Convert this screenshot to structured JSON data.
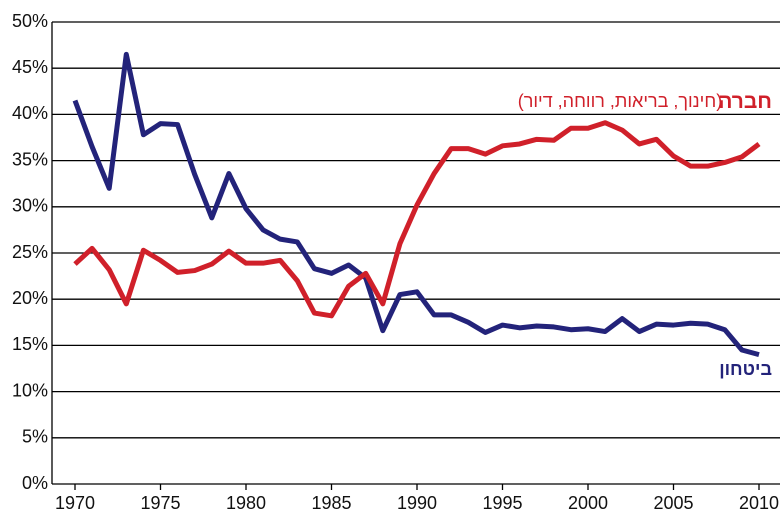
{
  "chart_data": {
    "type": "line",
    "x": [
      1970,
      1971,
      1972,
      1973,
      1974,
      1975,
      1976,
      1977,
      1978,
      1979,
      1980,
      1981,
      1982,
      1983,
      1984,
      1985,
      1986,
      1987,
      1988,
      1989,
      1990,
      1991,
      1992,
      1993,
      1994,
      1995,
      1996,
      1997,
      1998,
      1999,
      2000,
      2001,
      2002,
      2003,
      2004,
      2005,
      2006,
      2007,
      2008,
      2009,
      2010
    ],
    "series": [
      {
        "name": "ביטחון",
        "color": "#23237a",
        "values": [
          41.5,
          36.5,
          32,
          46.5,
          37.8,
          39,
          38.9,
          33.5,
          28.8,
          33.6,
          29.8,
          27.5,
          26.5,
          26.2,
          23.3,
          22.8,
          23.7,
          22.3,
          16.6,
          20.5,
          20.8,
          18.3,
          18.3,
          17.5,
          16.4,
          17.2,
          16.9,
          17.1,
          17,
          16.7,
          16.8,
          16.5,
          17.9,
          16.5,
          17.3,
          17.2,
          17.4,
          17.3,
          16.7,
          14.5,
          14.0
        ]
      },
      {
        "name": "חברה",
        "color": "#d0202a",
        "values": [
          23.8,
          25.5,
          23.2,
          19.5,
          25.3,
          24.2,
          22.9,
          23.1,
          23.8,
          25.2,
          23.9,
          23.9,
          24.2,
          22,
          18.5,
          18.2,
          21.4,
          22.8,
          19.5,
          26,
          30.2,
          33.6,
          36.3,
          36.3,
          35.7,
          36.6,
          36.8,
          37.3,
          37.2,
          38.5,
          38.5,
          39.1,
          38.3,
          36.8,
          37.3,
          35.5,
          34.4,
          34.4,
          34.8,
          35.4,
          36.8
        ]
      }
    ],
    "annotations": [
      "(חינוך, בריאות, רווחה, דיור)"
    ],
    "xlim": [
      1970,
      2010
    ],
    "xticks": [
      1970,
      1975,
      1980,
      1985,
      1990,
      1995,
      2000,
      2005,
      2010
    ],
    "ylim": [
      0,
      50
    ],
    "yticks": [
      {
        "value": 0,
        "label": "0%"
      },
      {
        "value": 5,
        "label": "5%"
      },
      {
        "value": 10,
        "label": "10%"
      },
      {
        "value": 15,
        "label": "15%"
      },
      {
        "value": 20,
        "label": "20%"
      },
      {
        "value": 25,
        "label": "25%"
      },
      {
        "value": 30,
        "label": "30%"
      },
      {
        "value": 35,
        "label": "35%"
      },
      {
        "value": 40,
        "label": "40%"
      },
      {
        "value": 45,
        "label": "45%"
      },
      {
        "value": 50,
        "label": "50%"
      }
    ],
    "grid": true
  }
}
